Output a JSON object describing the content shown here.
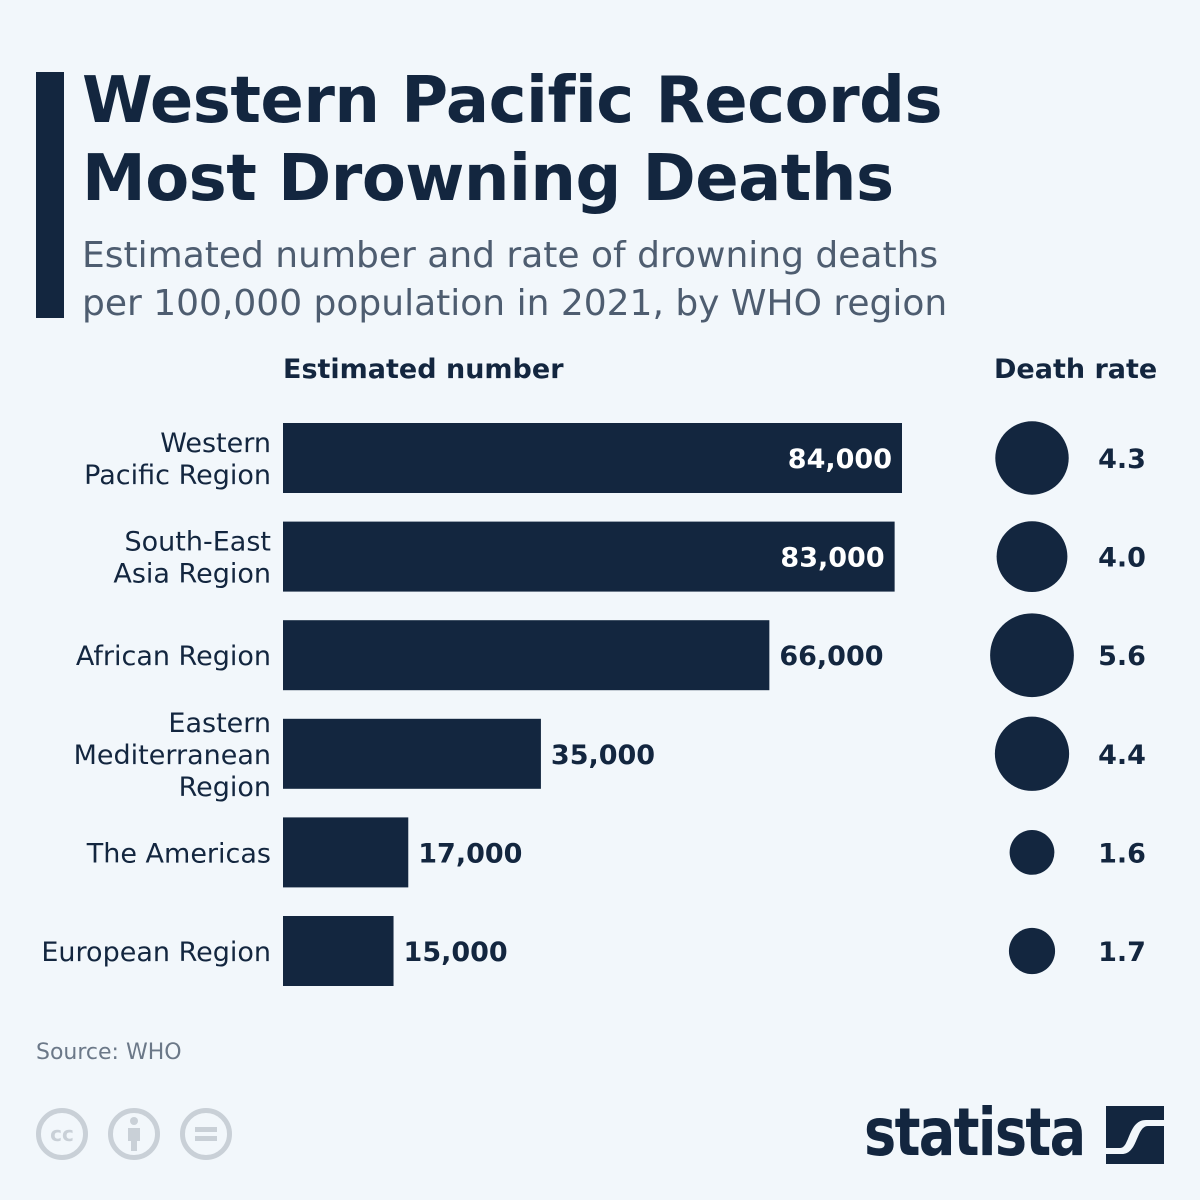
{
  "header": {
    "title_line1": "Western Pacific Records",
    "title_line2": "Most Drowning Deaths",
    "subtitle_line1": "Estimated number and rate of drowning deaths",
    "subtitle_line2": "per 100,000 population in 2021, by WHO region"
  },
  "chart_data": {
    "type": "bar",
    "orientation": "horizontal",
    "column_headers": [
      "Estimated number",
      "Death rate"
    ],
    "categories": [
      [
        "Western",
        "Pacific Region"
      ],
      [
        "South-East",
        "Asia Region"
      ],
      [
        "African Region"
      ],
      [
        "Eastern",
        "Mediterranean",
        "Region"
      ],
      [
        "The Americas"
      ],
      [
        "European Region"
      ]
    ],
    "series": [
      {
        "name": "Estimated number",
        "values": [
          84000,
          83000,
          66000,
          35000,
          17000,
          15000
        ],
        "labels": [
          "84,000",
          "83,000",
          "66,000",
          "35,000",
          "17,000",
          "15,000"
        ],
        "mark": "bar"
      },
      {
        "name": "Death rate",
        "values": [
          4.3,
          4.0,
          5.6,
          4.4,
          1.6,
          1.7
        ],
        "labels": [
          "4.3",
          "4.0",
          "5.6",
          "4.4",
          "1.6",
          "1.7"
        ],
        "mark": "bubble"
      }
    ],
    "xlim": [
      0,
      84000
    ],
    "grid": false,
    "colors": {
      "bar": "#13263f",
      "label_inside": "#ffffff",
      "label_outside": "#13263f"
    }
  },
  "footer": {
    "source": "Source: WHO",
    "license_icons": [
      "cc-icon",
      "attribution-icon",
      "no-derivatives-icon"
    ],
    "cc_text": "cc",
    "brand": "statista"
  }
}
